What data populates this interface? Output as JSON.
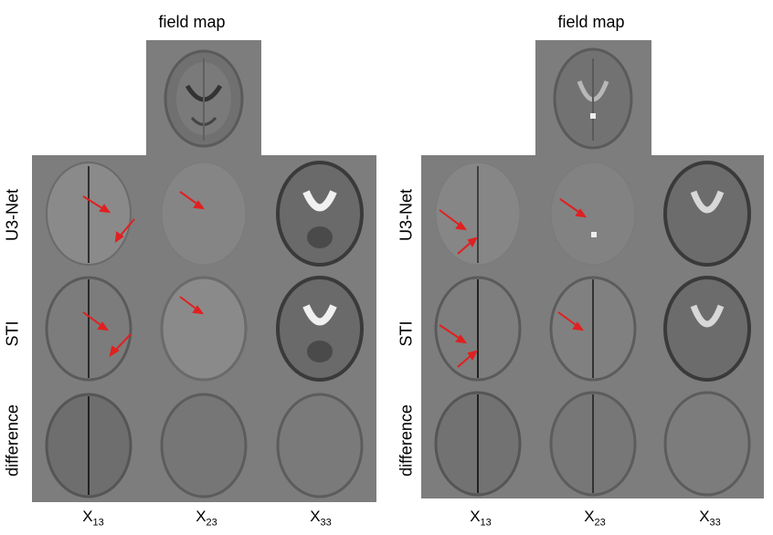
{
  "panels": [
    {
      "title": "field map",
      "rows": [
        "U3-Net",
        "STI",
        "difference"
      ],
      "columns": [
        {
          "base": "X",
          "sub": "13"
        },
        {
          "base": "X",
          "sub": "23"
        },
        {
          "base": "X",
          "sub": "33"
        }
      ]
    },
    {
      "title": "field map",
      "rows": [
        "U3-Net",
        "STI",
        "difference"
      ],
      "columns": [
        {
          "base": "X",
          "sub": "13"
        },
        {
          "base": "X",
          "sub": "23"
        },
        {
          "base": "X",
          "sub": "33"
        }
      ]
    }
  ],
  "colors": {
    "background": "#7d7d7d",
    "arrow": "#e02020"
  },
  "icons": [
    "brain-slice-image",
    "red-arrow"
  ]
}
